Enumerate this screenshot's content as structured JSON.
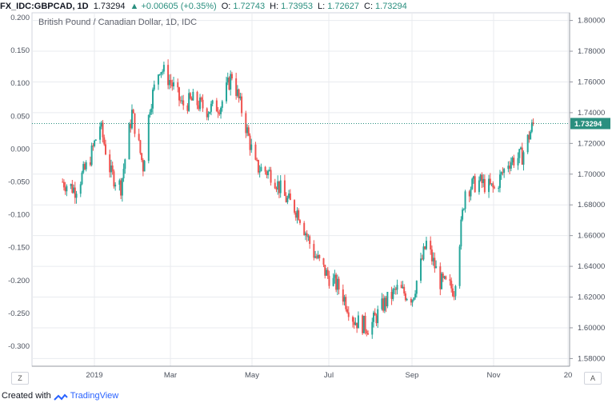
{
  "header": {
    "symbol": "FX_IDC:GBPCAD, 1D",
    "price": "1.73294",
    "change": "▲ +0.00605 (+0.35%)",
    "o_label": "O:",
    "o_value": "1.72743",
    "h_label": "H:",
    "h_value": "1.73953",
    "l_label": "L:",
    "l_value": "1.72627",
    "c_label": "C:",
    "c_value": "1.73294"
  },
  "chart_title": "British Pound / Canadian Dollar, 1D, IDC",
  "last_price_tag": "1.73294",
  "footer": {
    "created_with": "Created with",
    "brand": "TradingView"
  },
  "corner_left": "Z",
  "corner_right": "A",
  "colors": {
    "up": "#26a69a",
    "down": "#ef5350",
    "grid": "#e9ebef",
    "price_line": "#2a8f7f"
  },
  "chart_data": {
    "type": "candlestick",
    "title": "British Pound / Canadian Dollar, 1D, IDC",
    "y_right_ticks": [
      "1.80000",
      "1.78000",
      "1.76000",
      "1.74000",
      "1.72000",
      "1.70000",
      "1.68000",
      "1.66000",
      "1.64000",
      "1.62000",
      "1.60000",
      "1.58000"
    ],
    "y_left_ticks": [
      "0.200",
      "0.150",
      "0.100",
      "0.050",
      "0.000",
      "-0.050",
      "-0.100",
      "-0.150",
      "-0.200",
      "-0.250",
      "-0.300"
    ],
    "x_ticks": [
      "2019",
      "Mar",
      "May",
      "Jul",
      "Sep",
      "Nov",
      "20"
    ],
    "ylim_right": [
      1.575,
      1.805
    ],
    "last_close": 1.73294,
    "approx_path": [
      {
        "x": "2019-01-01",
        "y": 1.695
      },
      {
        "x": "2019-01-10",
        "y": 1.69
      },
      {
        "x": "2019-01-20",
        "y": 1.708
      },
      {
        "x": "2019-01-28",
        "y": 1.732
      },
      {
        "x": "2019-02-05",
        "y": 1.7
      },
      {
        "x": "2019-02-12",
        "y": 1.692
      },
      {
        "x": "2019-02-20",
        "y": 1.74
      },
      {
        "x": "2019-02-28",
        "y": 1.705
      },
      {
        "x": "2019-03-05",
        "y": 1.745
      },
      {
        "x": "2019-03-12",
        "y": 1.77
      },
      {
        "x": "2019-03-20",
        "y": 1.76
      },
      {
        "x": "2019-03-28",
        "y": 1.745
      },
      {
        "x": "2019-04-05",
        "y": 1.748
      },
      {
        "x": "2019-04-15",
        "y": 1.742
      },
      {
        "x": "2019-04-25",
        "y": 1.745
      },
      {
        "x": "2019-05-03",
        "y": 1.765
      },
      {
        "x": "2019-05-12",
        "y": 1.735
      },
      {
        "x": "2019-05-20",
        "y": 1.705
      },
      {
        "x": "2019-06-01",
        "y": 1.7
      },
      {
        "x": "2019-06-10",
        "y": 1.685
      },
      {
        "x": "2019-06-20",
        "y": 1.675
      },
      {
        "x": "2019-06-30",
        "y": 1.65
      },
      {
        "x": "2019-07-10",
        "y": 1.635
      },
      {
        "x": "2019-07-20",
        "y": 1.625
      },
      {
        "x": "2019-07-30",
        "y": 1.605
      },
      {
        "x": "2019-08-10",
        "y": 1.6
      },
      {
        "x": "2019-08-20",
        "y": 1.615
      },
      {
        "x": "2019-08-30",
        "y": 1.625
      },
      {
        "x": "2019-09-10",
        "y": 1.62
      },
      {
        "x": "2019-09-20",
        "y": 1.655
      },
      {
        "x": "2019-09-30",
        "y": 1.63
      },
      {
        "x": "2019-10-10",
        "y": 1.625
      },
      {
        "x": "2019-10-18",
        "y": 1.69
      },
      {
        "x": "2019-10-28",
        "y": 1.695
      },
      {
        "x": "2019-11-08",
        "y": 1.69
      },
      {
        "x": "2019-11-18",
        "y": 1.708
      },
      {
        "x": "2019-11-28",
        "y": 1.712
      },
      {
        "x": "2019-12-06",
        "y": 1.733
      }
    ]
  }
}
